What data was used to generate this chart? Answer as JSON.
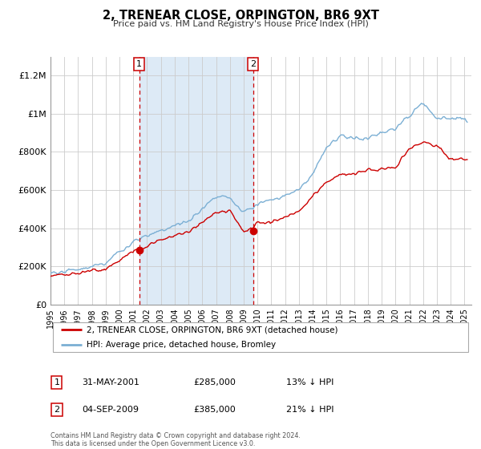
{
  "title": "2, TRENEAR CLOSE, ORPINGTON, BR6 9XT",
  "subtitle": "Price paid vs. HM Land Registry's House Price Index (HPI)",
  "ylabel_ticks": [
    "£0",
    "£200K",
    "£400K",
    "£600K",
    "£800K",
    "£1M",
    "£1.2M"
  ],
  "ytick_values": [
    0,
    200000,
    400000,
    600000,
    800000,
    1000000,
    1200000
  ],
  "ylim": [
    0,
    1300000
  ],
  "xlim_start": 1995.0,
  "xlim_end": 2025.5,
  "hpi_color": "#7bafd4",
  "price_color": "#cc0000",
  "bg_color": "#ddeaf6",
  "marker1_x": 2001.42,
  "marker1_y": 285000,
  "marker2_x": 2009.67,
  "marker2_y": 385000,
  "legend_label1": "2, TRENEAR CLOSE, ORPINGTON, BR6 9XT (detached house)",
  "legend_label2": "HPI: Average price, detached house, Bromley",
  "note1_num": "1",
  "note1_date": "31-MAY-2001",
  "note1_price": "£285,000",
  "note1_pct": "13% ↓ HPI",
  "note2_num": "2",
  "note2_date": "04-SEP-2009",
  "note2_price": "£385,000",
  "note2_pct": "21% ↓ HPI",
  "footer": "Contains HM Land Registry data © Crown copyright and database right 2024.\nThis data is licensed under the Open Government Licence v3.0."
}
